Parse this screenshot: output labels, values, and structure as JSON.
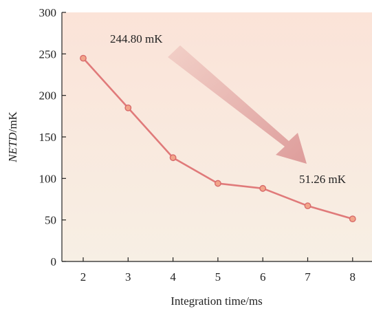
{
  "chart_data": {
    "type": "line",
    "title": "",
    "xlabel": "Integration time/ms",
    "ylabel_italic": "NETD",
    "ylabel_rest": "/mK",
    "xlim": [
      1.5,
      8.5
    ],
    "ylim": [
      0,
      300
    ],
    "x_ticks": [
      "2",
      "3",
      "4",
      "5",
      "6",
      "7",
      "8"
    ],
    "y_ticks": [
      "0",
      "50",
      "100",
      "150",
      "200",
      "250",
      "300"
    ],
    "grid": false,
    "series": [
      {
        "x": [
          2,
          3,
          4,
          5,
          6,
          7,
          8
        ],
        "y": [
          244.8,
          185,
          125,
          94,
          88,
          67,
          51.26
        ]
      }
    ],
    "annotations": [
      {
        "text": "244.80 mK"
      },
      {
        "text": "51.26 mK"
      }
    ],
    "colors": {
      "line": "#e07a7a",
      "marker_fill": "#f2a58a",
      "marker_stroke": "#d86a6a",
      "arrow": "#d98f8f",
      "background_top": "#fbe3d8",
      "background_bottom": "#f7efe4"
    }
  }
}
